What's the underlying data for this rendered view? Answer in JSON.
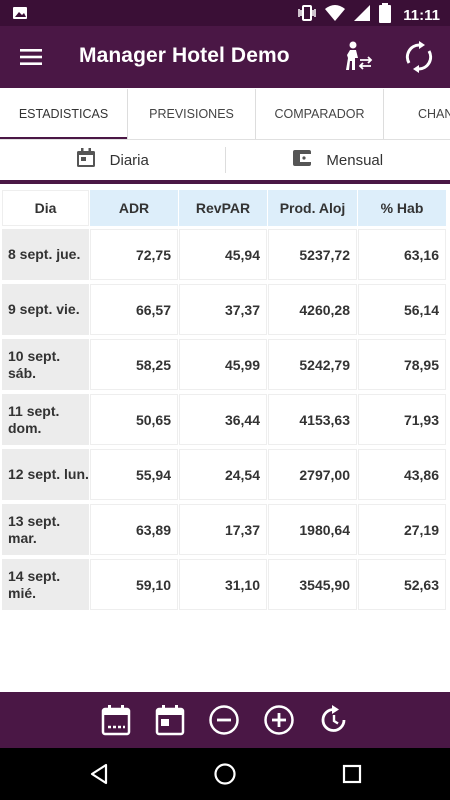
{
  "status_bar": {
    "time": "11:11",
    "icons": [
      "image-icon",
      "vibrate-icon",
      "wifi-icon",
      "signal-icon",
      "battery-icon"
    ]
  },
  "app_bar": {
    "title": "Manager Hotel Demo",
    "icons": [
      "menu-icon",
      "person-switch-icon",
      "sync-icon"
    ]
  },
  "tabs": [
    {
      "label": "ESTADISTICAS",
      "active": true
    },
    {
      "label": "PREVISIONES",
      "active": false
    },
    {
      "label": "COMPARADOR",
      "active": false
    },
    {
      "label": "CHAN",
      "active": false
    }
  ],
  "period": {
    "daily_label": "Diaria",
    "monthly_label": "Mensual"
  },
  "table": {
    "headers": [
      "Dia",
      "ADR",
      "RevPAR",
      "Prod. Aloj",
      "% Hab"
    ],
    "rows": [
      {
        "day": "8 sept. jue.",
        "adr": "72,75",
        "revpar": "45,94",
        "prod": "5237,72",
        "hab": "63,16"
      },
      {
        "day": "9 sept. vie.",
        "adr": "66,57",
        "revpar": "37,37",
        "prod": "4260,28",
        "hab": "56,14"
      },
      {
        "day": "10 sept. sáb.",
        "adr": "58,25",
        "revpar": "45,99",
        "prod": "5242,79",
        "hab": "78,95"
      },
      {
        "day": "11 sept. dom.",
        "adr": "50,65",
        "revpar": "36,44",
        "prod": "4153,63",
        "hab": "71,93"
      },
      {
        "day": "12 sept. lun.",
        "adr": "55,94",
        "revpar": "24,54",
        "prod": "2797,00",
        "hab": "43,86"
      },
      {
        "day": "13 sept. mar.",
        "adr": "63,89",
        "revpar": "17,37",
        "prod": "1980,64",
        "hab": "27,19"
      },
      {
        "day": "14 sept. mié.",
        "adr": "59,10",
        "revpar": "31,10",
        "prod": "3545,90",
        "hab": "52,63"
      }
    ]
  },
  "bottom_toolbar": {
    "icons": [
      "calendar-week-icon",
      "calendar-day-icon",
      "zoom-out-icon",
      "zoom-in-icon",
      "refresh-icon"
    ]
  },
  "nav_bar": {
    "icons": [
      "back-icon",
      "home-icon",
      "recents-icon"
    ]
  },
  "colors": {
    "primary": "#4a1745",
    "status": "#3a0f36",
    "header_cell": "#ddeefa",
    "day_cell": "#ececec"
  }
}
